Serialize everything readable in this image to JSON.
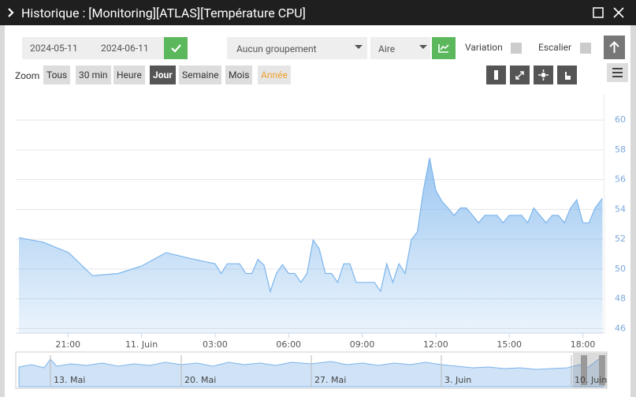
{
  "header": {
    "title": "Historique : [Monitoring][ATLAS][Température CPU]"
  },
  "toolbar": {
    "start_date": "2024-05-11",
    "end_date": "2024-06-11",
    "grouping": "Aucun groupement",
    "chart_style": "Aire",
    "variation_label": "Variation",
    "stair_label": "Escalier",
    "zoom_label": "Zoom",
    "zoom_buttons": [
      "Tous",
      "30 min",
      "Heure",
      "Jour",
      "Semaine",
      "Mois",
      "Année"
    ]
  },
  "chart_data": {
    "type": "area",
    "color": "#7cb5ec",
    "x": [
      19.0,
      20.0,
      21.03,
      22.0,
      23.05,
      24.0,
      25.0,
      26.0,
      27.0,
      27.25,
      27.5,
      28.0,
      28.25,
      28.5,
      28.75,
      29.0,
      29.25,
      29.5,
      29.75,
      30.0,
      30.25,
      30.5,
      30.75,
      31.0,
      31.25,
      31.5,
      31.75,
      32.0,
      32.25,
      32.5,
      32.75,
      33.5,
      33.75,
      34.0,
      34.25,
      34.5,
      34.75,
      35.0,
      35.25,
      35.5,
      35.75,
      36.0,
      36.25,
      36.5,
      36.75,
      37.0,
      37.25,
      37.75,
      38.0,
      38.5,
      38.75,
      39.0,
      39.5,
      39.75,
      40.0,
      40.25,
      40.5,
      40.75,
      41.0,
      41.25,
      41.5,
      41.75,
      42.0,
      42.25,
      42.5,
      42.8
    ],
    "values": [
      52.1,
      51.8,
      51.1,
      49.55,
      49.7,
      50.2,
      51.1,
      50.7,
      50.35,
      49.7,
      50.35,
      50.35,
      49.7,
      49.7,
      50.65,
      50.25,
      48.5,
      49.7,
      50.3,
      49.7,
      49.7,
      49.1,
      49.7,
      51.95,
      51.35,
      49.7,
      49.7,
      49.1,
      50.35,
      50.35,
      49.1,
      49.1,
      48.5,
      50.35,
      49.1,
      50.35,
      49.7,
      51.95,
      52.5,
      55.3,
      57.45,
      55.3,
      54.55,
      54.1,
      53.6,
      54.1,
      54.1,
      53.1,
      53.6,
      53.6,
      53.1,
      53.6,
      53.6,
      53.1,
      54.1,
      53.6,
      53.1,
      53.6,
      53.6,
      53.1,
      54.1,
      54.65,
      53.1,
      53.1,
      54.1,
      54.75
    ],
    "xlim": [
      19.0,
      42.85
    ],
    "xticks": [
      {
        "value": 21,
        "label": "21:00"
      },
      {
        "value": 24,
        "label": "11. Juin"
      },
      {
        "value": 27,
        "label": "03:00"
      },
      {
        "value": 30,
        "label": "06:00"
      },
      {
        "value": 33,
        "label": "09:00"
      },
      {
        "value": 36,
        "label": "12:00"
      },
      {
        "value": 39,
        "label": "15:00"
      },
      {
        "value": 42,
        "label": "18:00"
      }
    ],
    "ylim": [
      45.7,
      61.7
    ],
    "yticks": [
      46,
      48,
      50,
      52,
      54,
      56,
      58,
      60
    ],
    "grid": true
  },
  "navigator": {
    "labels": [
      "13. Mai",
      "20. Mai",
      "27. Mai",
      "3. Juin",
      "10. Juin"
    ]
  }
}
